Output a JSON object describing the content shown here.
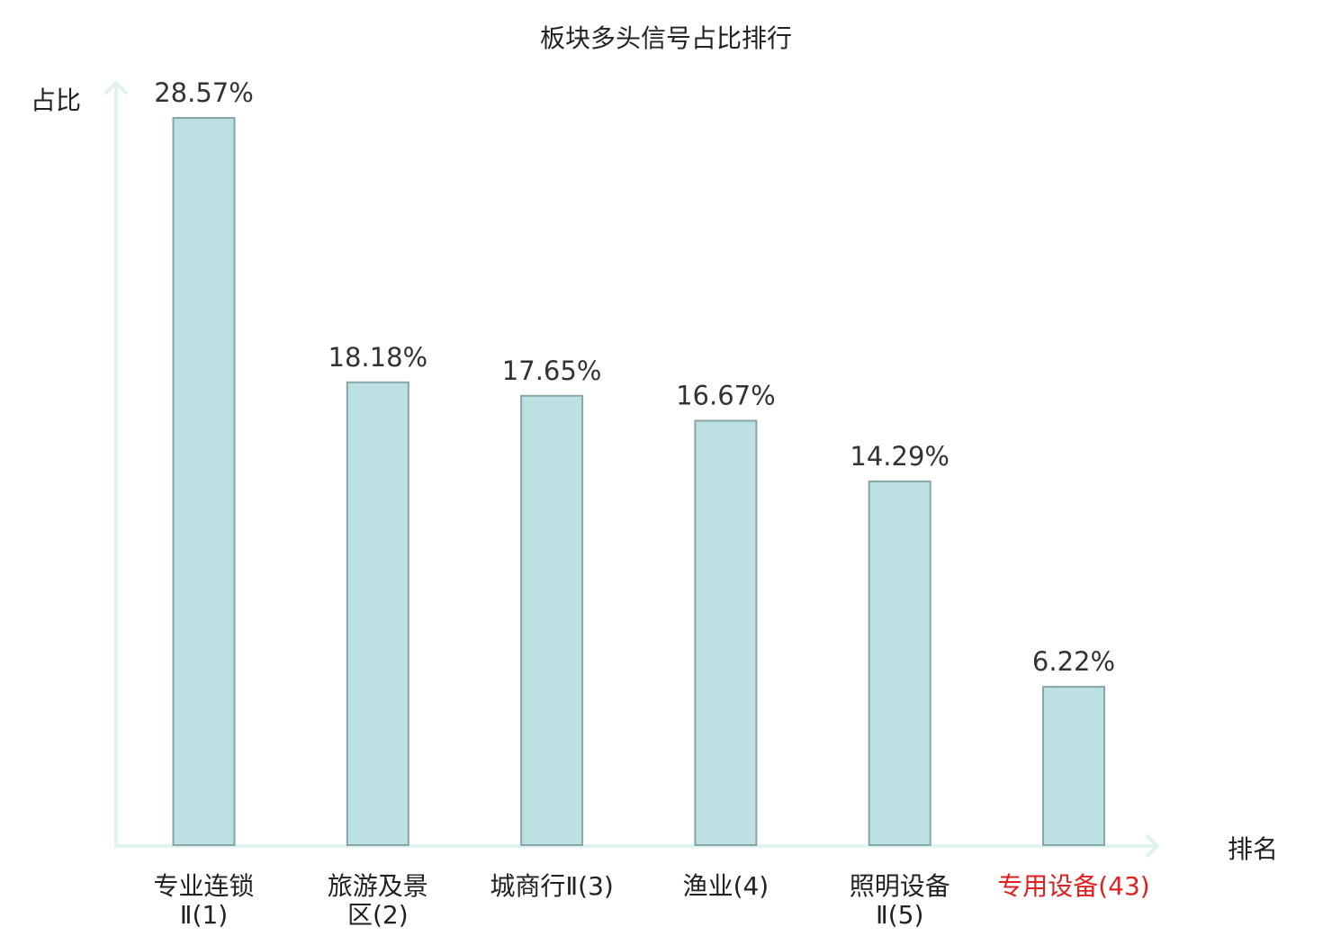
{
  "chart_data": {
    "type": "bar",
    "title": "板块多头信号占比排行",
    "ylabel": "占比",
    "xlabel": "排名",
    "categories": [
      [
        "专业连锁",
        "Ⅱ(1)"
      ],
      [
        "旅游及景",
        "区(2)"
      ],
      [
        "城商行Ⅱ(3)"
      ],
      [
        "渔业(4)"
      ],
      [
        "照明设备",
        "Ⅱ(5)"
      ],
      [
        "专用设备(43)"
      ]
    ],
    "values": [
      28.57,
      18.18,
      17.65,
      16.67,
      14.29,
      6.22
    ],
    "value_labels": [
      "28.57%",
      "18.18%",
      "17.65%",
      "16.67%",
      "14.29%",
      "6.22%"
    ],
    "highlight_index": 5,
    "ylim": [
      0,
      30
    ],
    "grid": false,
    "colors": {
      "bar": "#bde0e2",
      "bar_edge": "#86a6a7",
      "axis": "#dff3f0",
      "highlight": "#e02020"
    }
  }
}
